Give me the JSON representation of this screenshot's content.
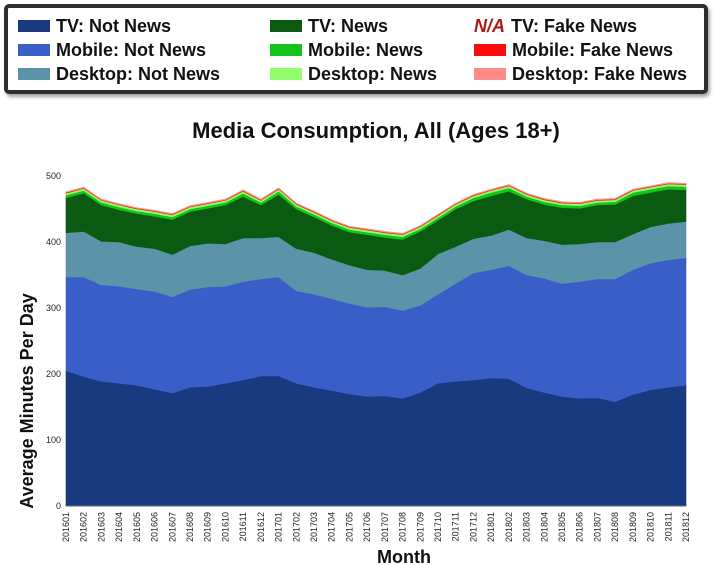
{
  "legend": {
    "items": [
      {
        "label": "TV: Not News",
        "color": "#1a3a80"
      },
      {
        "label": "TV: News",
        "color": "#0b5a12"
      },
      {
        "label": "TV: Fake News",
        "prefix": "N/A",
        "color": "#ffffff"
      },
      {
        "label": "Mobile: Not News",
        "color": "#3a5ec8"
      },
      {
        "label": "Mobile: News",
        "color": "#14c41c"
      },
      {
        "label": "Mobile: Fake News",
        "color": "#ff0a0a"
      },
      {
        "label": "Desktop: Not News",
        "color": "#5b93a8"
      },
      {
        "label": "Desktop: News",
        "color": "#90ff6a"
      },
      {
        "label": "Desktop: Fake News",
        "color": "#ff8a8a"
      }
    ]
  },
  "chart_data": {
    "type": "area",
    "stacked": true,
    "title": "Media Consumption,  All (Ages 18+)",
    "xlabel": "Month",
    "ylabel": "Average Minutes Per Day",
    "ylim": [
      0,
      500
    ],
    "yticks": [
      0,
      100,
      200,
      300,
      400,
      500
    ],
    "grid": false,
    "x": [
      "201601",
      "201602",
      "201603",
      "201604",
      "201605",
      "201606",
      "201607",
      "201608",
      "201609",
      "201610",
      "201611",
      "201612",
      "201701",
      "201702",
      "201703",
      "201704",
      "201705",
      "201706",
      "201707",
      "201708",
      "201709",
      "201710",
      "201711",
      "201712",
      "201801",
      "201802",
      "201803",
      "201804",
      "201805",
      "201806",
      "201807",
      "201808",
      "201809",
      "201810",
      "201811",
      "201812"
    ],
    "series": [
      {
        "name": "TV: Not News",
        "color": "#1a3a80",
        "values": [
          205,
          196,
          189,
          186,
          183,
          177,
          171,
          180,
          181,
          186,
          191,
          197,
          197,
          186,
          180,
          175,
          170,
          166,
          167,
          163,
          172,
          186,
          189,
          191,
          194,
          193,
          179,
          172,
          166,
          163,
          164,
          158,
          169,
          176,
          180,
          183
        ]
      },
      {
        "name": "Mobile: Not News",
        "color": "#3a5ec8",
        "values": [
          142,
          151,
          146,
          147,
          146,
          148,
          146,
          148,
          151,
          147,
          149,
          147,
          150,
          140,
          141,
          139,
          137,
          135,
          135,
          133,
          132,
          135,
          148,
          162,
          164,
          171,
          171,
          173,
          171,
          177,
          180,
          186,
          189,
          192,
          193,
          193
        ]
      },
      {
        "name": "Desktop: Not News",
        "color": "#5b93a8",
        "values": [
          67,
          69,
          66,
          67,
          64,
          65,
          64,
          66,
          66,
          64,
          66,
          62,
          61,
          64,
          63,
          60,
          58,
          57,
          55,
          54,
          56,
          61,
          56,
          52,
          52,
          55,
          56,
          57,
          59,
          57,
          56,
          56,
          54,
          55,
          55,
          55
        ]
      },
      {
        "name": "TV: News",
        "color": "#0b5a12",
        "values": [
          53,
          58,
          55,
          49,
          50,
          49,
          53,
          52,
          53,
          59,
          63,
          50,
          64,
          60,
          54,
          51,
          50,
          53,
          50,
          54,
          56,
          51,
          57,
          57,
          60,
          58,
          59,
          55,
          56,
          54,
          56,
          57,
          58,
          52,
          52,
          48
        ]
      },
      {
        "name": "Mobile: News",
        "color": "#14c41c",
        "values": [
          4,
          4,
          4,
          4,
          4,
          4,
          4,
          4,
          4,
          4,
          5,
          4,
          5,
          4,
          4,
          4,
          4,
          4,
          4,
          4,
          4,
          4,
          4,
          5,
          5,
          5,
          4,
          4,
          4,
          4,
          4,
          4,
          5,
          5,
          5,
          5
        ]
      },
      {
        "name": "Desktop: News",
        "color": "#90ff6a",
        "values": [
          3,
          3,
          3,
          3,
          3,
          3,
          3,
          3,
          3,
          3,
          3,
          3,
          3,
          3,
          3,
          3,
          3,
          3,
          3,
          3,
          3,
          3,
          3,
          3,
          3,
          3,
          3,
          3,
          3,
          3,
          3,
          3,
          3,
          3,
          3,
          3
        ]
      },
      {
        "name": "Mobile: Fake News",
        "color": "#ff0a0a",
        "values": [
          1,
          1,
          1,
          1,
          1,
          1,
          1,
          1,
          1,
          1,
          1,
          1,
          1,
          1,
          1,
          1,
          1,
          1,
          1,
          1,
          1,
          1,
          1,
          1,
          1,
          1,
          1,
          1,
          1,
          1,
          1,
          1,
          1,
          1,
          1,
          1
        ]
      },
      {
        "name": "Desktop: Fake News",
        "color": "#ff8a8a",
        "values": [
          1,
          1,
          1,
          1,
          1,
          1,
          1,
          1,
          1,
          1,
          1,
          1,
          1,
          1,
          1,
          1,
          1,
          1,
          1,
          1,
          1,
          1,
          1,
          1,
          1,
          1,
          1,
          1,
          1,
          1,
          1,
          1,
          1,
          1,
          1,
          1
        ]
      }
    ]
  }
}
